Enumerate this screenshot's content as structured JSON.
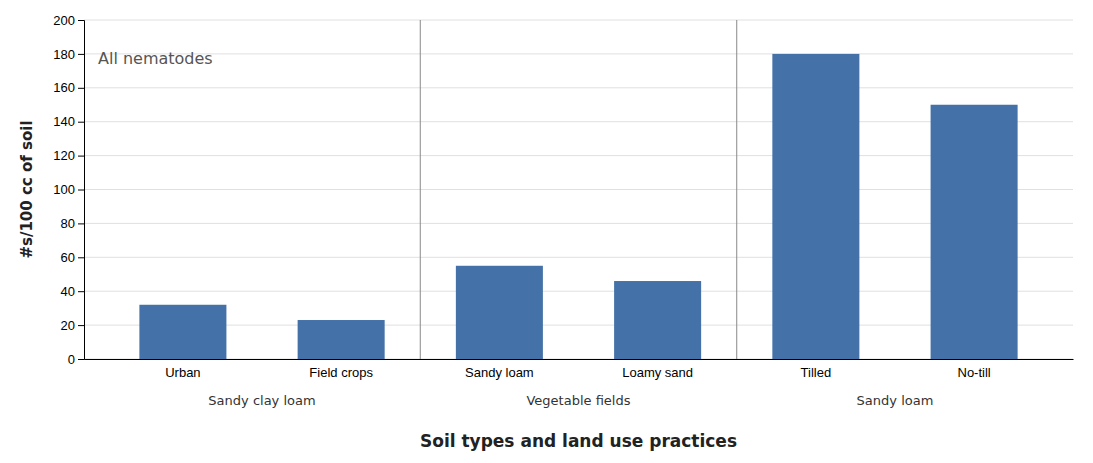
{
  "chart_data": {
    "type": "bar",
    "categories": [
      "Urban",
      "Field crops",
      "Sandy loam",
      "Loamy sand",
      "Tilled",
      "No-till"
    ],
    "values": [
      32,
      23,
      55,
      46,
      180,
      150
    ],
    "groups": [
      "Sandy clay loam",
      "Sandy clay loam",
      "Vegetable fields",
      "Vegetable fields",
      "Sandy loam",
      "Sandy loam"
    ],
    "color": "#4472a8",
    "ylim": [
      0,
      200
    ],
    "yticks": [
      0,
      20,
      40,
      60,
      80,
      100,
      120,
      140,
      160,
      180,
      200
    ],
    "grid": true,
    "ylabel": "#s/100 cc of soil",
    "xlabel": "Soil types and land use practices",
    "annotation": "All nematodes"
  }
}
